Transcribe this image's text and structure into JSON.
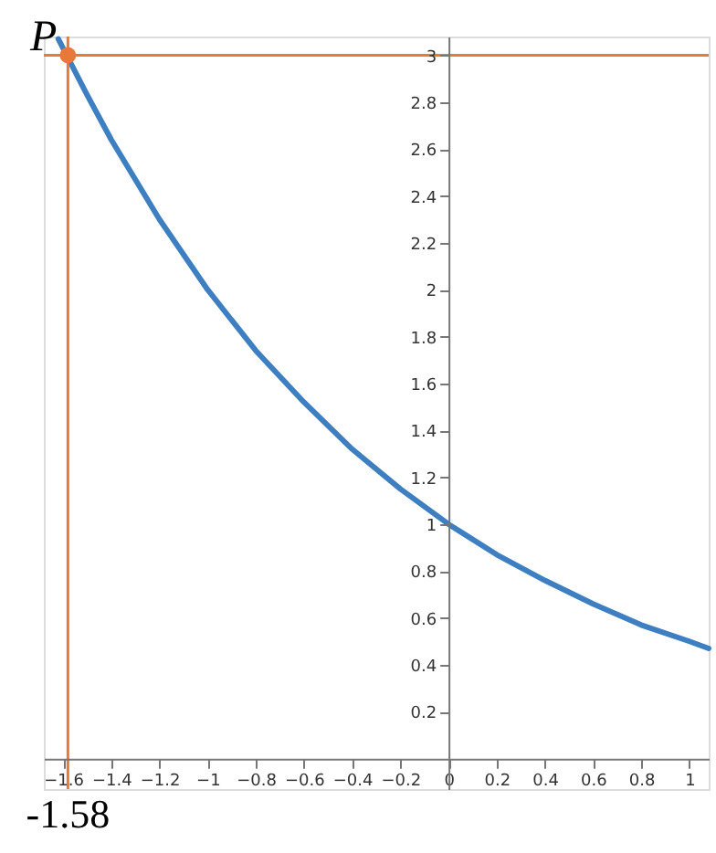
{
  "chart_data": {
    "type": "line",
    "xlim": [
      -1.68,
      1.08
    ],
    "ylim": [
      -0.13,
      3.08
    ],
    "xticks": [
      -1.6,
      -1.4,
      -1.2,
      -1,
      -0.8,
      -0.6,
      -0.4,
      -0.2,
      0,
      0.2,
      0.4,
      0.6,
      0.8,
      1
    ],
    "yticks": [
      0.2,
      0.4,
      0.6,
      0.8,
      1,
      1.2,
      1.4,
      1.6,
      1.8,
      2,
      2.2,
      2.4,
      2.6,
      2.8,
      3
    ],
    "grid": false,
    "series": [
      {
        "color": "#3d7fc1",
        "x": [
          -1.62,
          -1.5,
          -1.4,
          -1.2,
          -1.0,
          -0.8,
          -0.6,
          -0.4,
          -0.2,
          0,
          0.2,
          0.4,
          0.6,
          0.8,
          1.0,
          1.08
        ],
        "values": [
          3.07,
          2.83,
          2.64,
          2.3,
          2.0,
          1.74,
          1.52,
          1.32,
          1.15,
          1.0,
          0.87,
          0.76,
          0.66,
          0.57,
          0.5,
          0.47
        ]
      },
      {
        "type": "scatter",
        "color": "#e8793a",
        "marker": "circle",
        "x": [
          -1.58
        ],
        "values": [
          3
        ]
      }
    ],
    "ref_lines": [
      {
        "axis": "x",
        "value": -1.58,
        "label": "-1.58",
        "color": "#e8793a"
      },
      {
        "axis": "y",
        "value": 3,
        "label": null,
        "color": "#e8793a"
      }
    ],
    "annotations": [
      {
        "text": "P",
        "x": -1.58,
        "y": 3
      }
    ]
  }
}
